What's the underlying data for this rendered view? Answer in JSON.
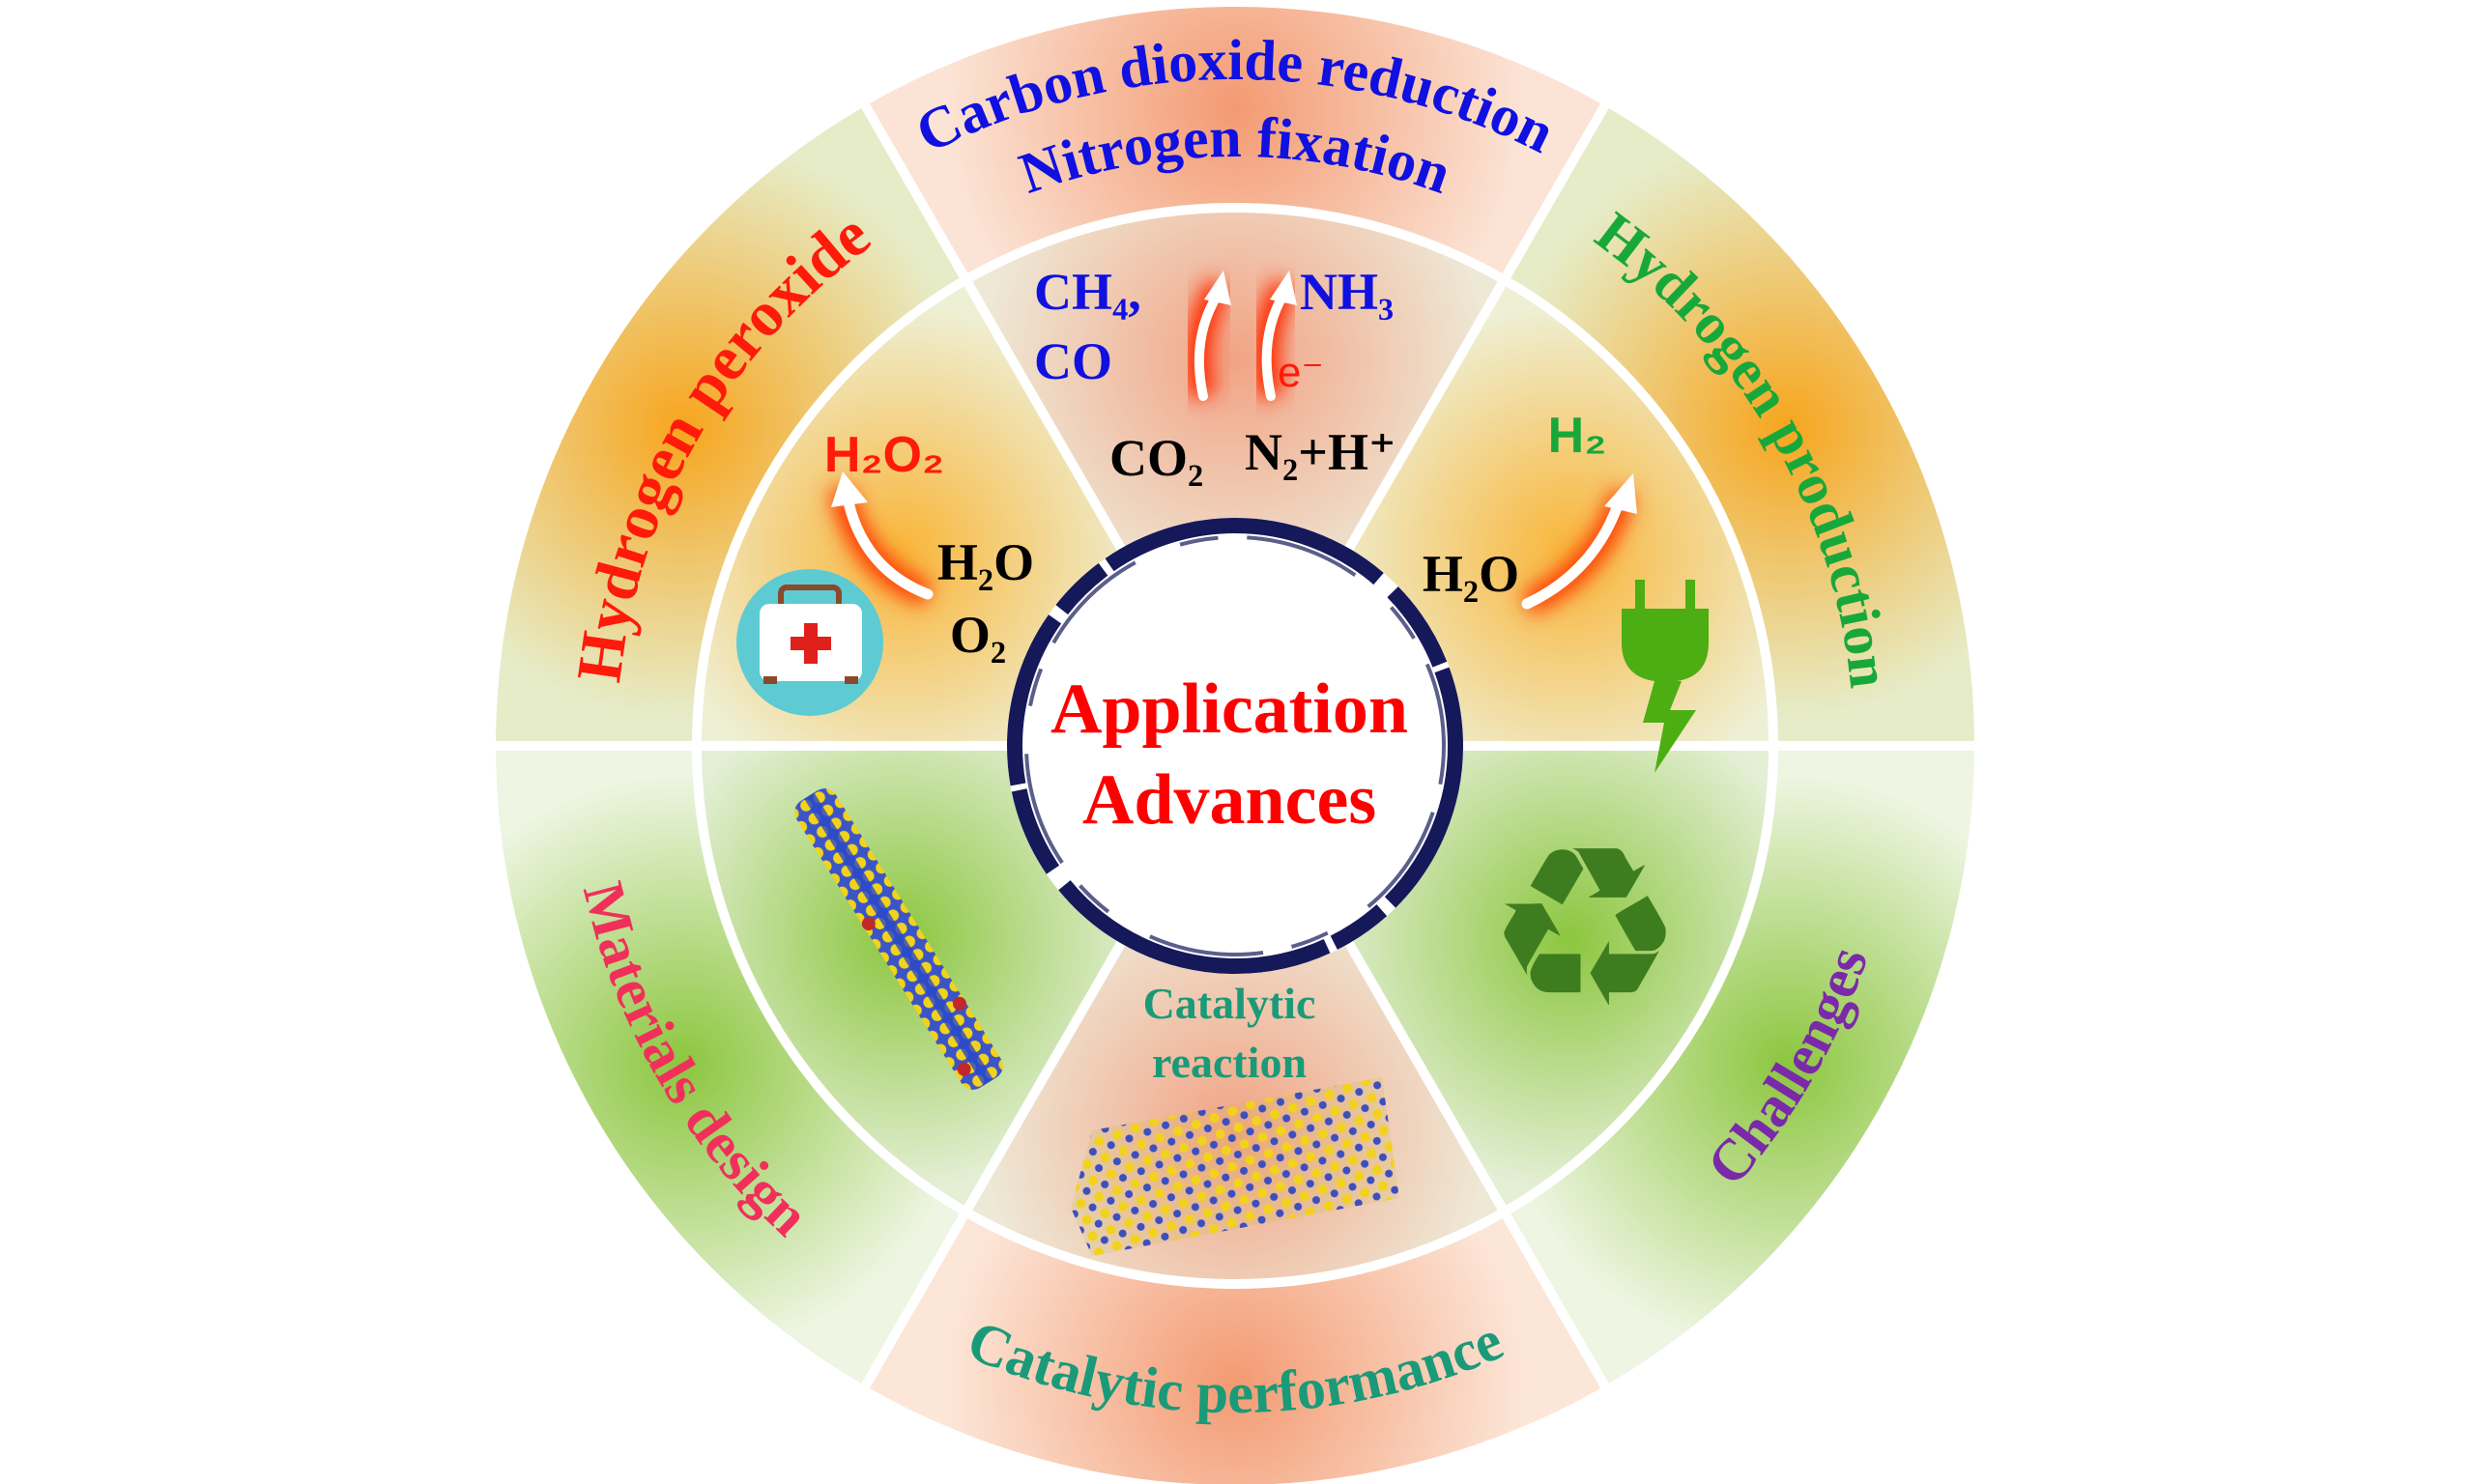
{
  "center": {
    "line1": "Application",
    "line2": "Advances"
  },
  "outer_labels": {
    "hydrogen_peroxide": "Hydrogen peroxide",
    "co2_reduction": "Carbon dioxide reduction",
    "nitrogen_fixation": "Nitrogen  fixation",
    "hydrogen_production": "Hydrogen production",
    "challenges": "Challenges",
    "catalytic_performance": "Catalytic performance",
    "materials_design": "Materials design"
  },
  "inner": {
    "h2o2_product": "H₂O₂",
    "h2o_left": "H₂O",
    "o2_left": "O₂",
    "ch4": "CH₄,",
    "co": "CO",
    "nh3": "NH₃",
    "electron": "e⁻",
    "co2": "CO₂",
    "n2_h": "N₂+H⁺",
    "h2_product": "H₂",
    "h2o_right": "H₂O",
    "catalytic_line1": "Catalytic",
    "catalytic_line2": "reaction"
  },
  "icons": {
    "medkit": "first-aid-kit-icon",
    "plug": "electric-plug-icon",
    "recycle": "recycle-icon",
    "recycle_glyph": "♻",
    "nanorod": "nanorod-structure",
    "crystal": "layered-crystal-structure"
  },
  "colors": {
    "title_red": "#ff0000",
    "blue_text": "#1010e0",
    "green_text": "#18a83a",
    "teal_text": "#1a9a78",
    "pink_text": "#f0305a",
    "purple_text": "#7a2aa8",
    "navy_ring": "#15195a",
    "recycle_green": "#3e7d1f",
    "plug_green": "#4cae12"
  }
}
